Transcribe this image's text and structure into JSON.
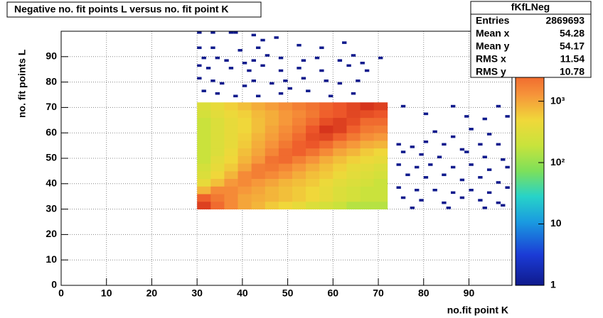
{
  "chart_data": {
    "type": "heatmap",
    "title": "Negative no. fit points L versus no. fit point K",
    "xlabel": "no.fit point K",
    "ylabel": "no. fit points  L",
    "xlim": [
      0,
      99.5
    ],
    "ylim": [
      0,
      100
    ],
    "xticks": [
      0,
      10,
      20,
      30,
      40,
      50,
      60,
      70,
      80,
      90
    ],
    "yticks": [
      0,
      10,
      20,
      30,
      40,
      50,
      60,
      70,
      80,
      90
    ],
    "grid": true,
    "zlim": [
      1,
      13800
    ],
    "zlog": true,
    "zticks": [
      1,
      10,
      {
        "value": 100,
        "label": "10²"
      },
      {
        "value": 1000,
        "label": "10³"
      }
    ],
    "xbins": [
      30,
      33,
      36,
      39,
      42,
      45,
      48,
      51,
      54,
      57,
      60,
      63,
      66,
      69,
      72
    ],
    "ybins": [
      30,
      33,
      36,
      39,
      42,
      45,
      48,
      51,
      54,
      57,
      60,
      63,
      66,
      69,
      72
    ],
    "z": [
      [
        5000,
        2500,
        1500,
        1000,
        800,
        600,
        500,
        400,
        300,
        250,
        200,
        150,
        150,
        150
      ],
      [
        3000,
        2000,
        1500,
        1000,
        900,
        800,
        700,
        600,
        500,
        400,
        300,
        250,
        200,
        200
      ],
      [
        800,
        1500,
        1500,
        1200,
        1000,
        800,
        700,
        600,
        500,
        400,
        300,
        250,
        200,
        200
      ],
      [
        400,
        700,
        1200,
        1500,
        1200,
        1000,
        800,
        700,
        600,
        450,
        350,
        300,
        250,
        200
      ],
      [
        300,
        500,
        800,
        1500,
        1800,
        1500,
        1200,
        900,
        700,
        600,
        450,
        350,
        300,
        250
      ],
      [
        250,
        400,
        600,
        1000,
        1800,
        2000,
        1600,
        1200,
        900,
        700,
        550,
        400,
        350,
        300
      ],
      [
        200,
        350,
        500,
        800,
        1200,
        2200,
        2500,
        1800,
        1300,
        900,
        700,
        550,
        450,
        400
      ],
      [
        200,
        300,
        450,
        700,
        1000,
        1600,
        2500,
        3000,
        2200,
        1500,
        1000,
        800,
        600,
        500
      ],
      [
        200,
        300,
        400,
        600,
        900,
        1300,
        2000,
        3000,
        3500,
        2500,
        1600,
        1200,
        900,
        800
      ],
      [
        200,
        300,
        400,
        550,
        800,
        1100,
        1600,
        2500,
        4000,
        4500,
        3000,
        2000,
        1400,
        1200
      ],
      [
        200,
        300,
        400,
        500,
        700,
        1000,
        1400,
        2000,
        3500,
        6000,
        5000,
        3000,
        2000,
        1800
      ],
      [
        200,
        300,
        400,
        500,
        700,
        900,
        1200,
        1700,
        2500,
        4000,
        5000,
        4000,
        2500,
        2500
      ],
      [
        250,
        350,
        450,
        550,
        750,
        900,
        1200,
        1500,
        2000,
        3000,
        3500,
        4500,
        4000,
        3500
      ],
      [
        300,
        400,
        550,
        700,
        900,
        1100,
        1400,
        1800,
        2200,
        2800,
        3500,
        4500,
        6000,
        5000
      ]
    ],
    "points": {
      "x": [
        30,
        33,
        37,
        38,
        42,
        47,
        62,
        44,
        30,
        33,
        39,
        43,
        45,
        52,
        57,
        61,
        31,
        34,
        36,
        40,
        42,
        48,
        53,
        56,
        64,
        66,
        70,
        30,
        32,
        37,
        41,
        44,
        48,
        52,
        57,
        63,
        67,
        30,
        33,
        35,
        40,
        42,
        46,
        49,
        53,
        58,
        61,
        65,
        31,
        34,
        38,
        43,
        48,
        50,
        54,
        59,
        64,
        75,
        86,
        96,
        80,
        89,
        93,
        98,
        82,
        90,
        94,
        86,
        74,
        77,
        80,
        84,
        88,
        92,
        96,
        75,
        79,
        83,
        89,
        93,
        97,
        74,
        78,
        81,
        86,
        90,
        94,
        98,
        76,
        80,
        84,
        88,
        92,
        96,
        74,
        78,
        82,
        86,
        90,
        94,
        98,
        75,
        79,
        84,
        88,
        92,
        96,
        77,
        85,
        93,
        97
      ],
      "y": [
        99,
        99,
        99,
        99,
        98,
        97,
        95,
        96,
        93,
        93,
        92,
        93,
        90,
        94,
        93,
        88,
        89,
        89,
        88,
        87,
        88,
        89,
        88,
        89,
        90,
        87,
        89,
        86,
        85,
        85,
        84,
        86,
        84,
        85,
        84,
        86,
        84,
        81,
        80,
        79,
        78,
        80,
        79,
        80,
        81,
        80,
        79,
        80,
        76,
        75,
        74,
        74,
        75,
        77,
        76,
        74,
        75,
        70,
        70,
        70,
        67,
        66,
        65,
        66,
        60,
        61,
        59,
        58,
        55,
        54,
        56,
        55,
        53,
        55,
        55,
        52,
        51,
        50,
        52,
        50,
        49,
        47,
        46,
        47,
        46,
        47,
        45,
        46,
        43,
        42,
        43,
        41,
        42,
        40,
        38,
        37,
        37,
        36,
        37,
        36,
        38,
        34,
        33,
        32,
        34,
        33,
        32,
        30,
        30,
        30,
        31
      ],
      "values": [
        1,
        1,
        1,
        1,
        1,
        1,
        1,
        1,
        1,
        1,
        1,
        1,
        1,
        1,
        1,
        1,
        1,
        1,
        1,
        1,
        1,
        1,
        1,
        1,
        1,
        1,
        1,
        1,
        1,
        1,
        1,
        1,
        1,
        1,
        1,
        1,
        1,
        1,
        1,
        1,
        1,
        1,
        1,
        1,
        1,
        1,
        1,
        1,
        1,
        1,
        1,
        1,
        1,
        1,
        1,
        1,
        1,
        1,
        1,
        1,
        1,
        1,
        1,
        1,
        1,
        1,
        1,
        1,
        1,
        1,
        1,
        1,
        1,
        1,
        1,
        1,
        1,
        1,
        1,
        1,
        1,
        1,
        1,
        1,
        1,
        1,
        1,
        1,
        1,
        1,
        1,
        1,
        1,
        1,
        1,
        1,
        1,
        1,
        1,
        1,
        1,
        1,
        1,
        1,
        1,
        1,
        1,
        1,
        1,
        1,
        1
      ]
    },
    "stats": {
      "name": "fKfLNeg",
      "rows": [
        {
          "label": "Entries",
          "value": 2869693
        },
        {
          "label": "Mean x",
          "value": 54.28
        },
        {
          "label": "Mean y",
          "value": 54.17
        },
        {
          "label": "RMS x",
          "value": 11.54
        },
        {
          "label": "RMS y",
          "value": 10.78
        }
      ]
    }
  }
}
